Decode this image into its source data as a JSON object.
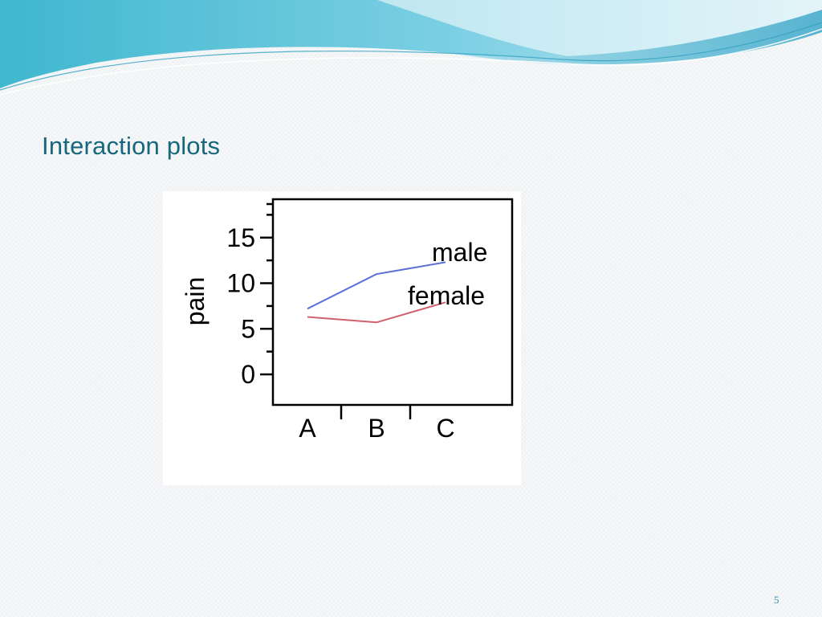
{
  "slide": {
    "title": "Interaction plots",
    "page_number": "5"
  },
  "colors": {
    "title": "#17677d",
    "male": "#5b6fd6",
    "female": "#d0606e"
  },
  "chart_data": {
    "type": "line",
    "ylabel": "pain",
    "xlabel": "",
    "categories": [
      "A",
      "B",
      "C"
    ],
    "y_ticks": [
      0,
      5,
      10,
      15
    ],
    "ylim": [
      0,
      18
    ],
    "series": [
      {
        "name": "male",
        "values": [
          7.2,
          11,
          12.3
        ]
      },
      {
        "name": "female",
        "values": [
          6.3,
          5.7,
          7.9
        ]
      }
    ]
  }
}
